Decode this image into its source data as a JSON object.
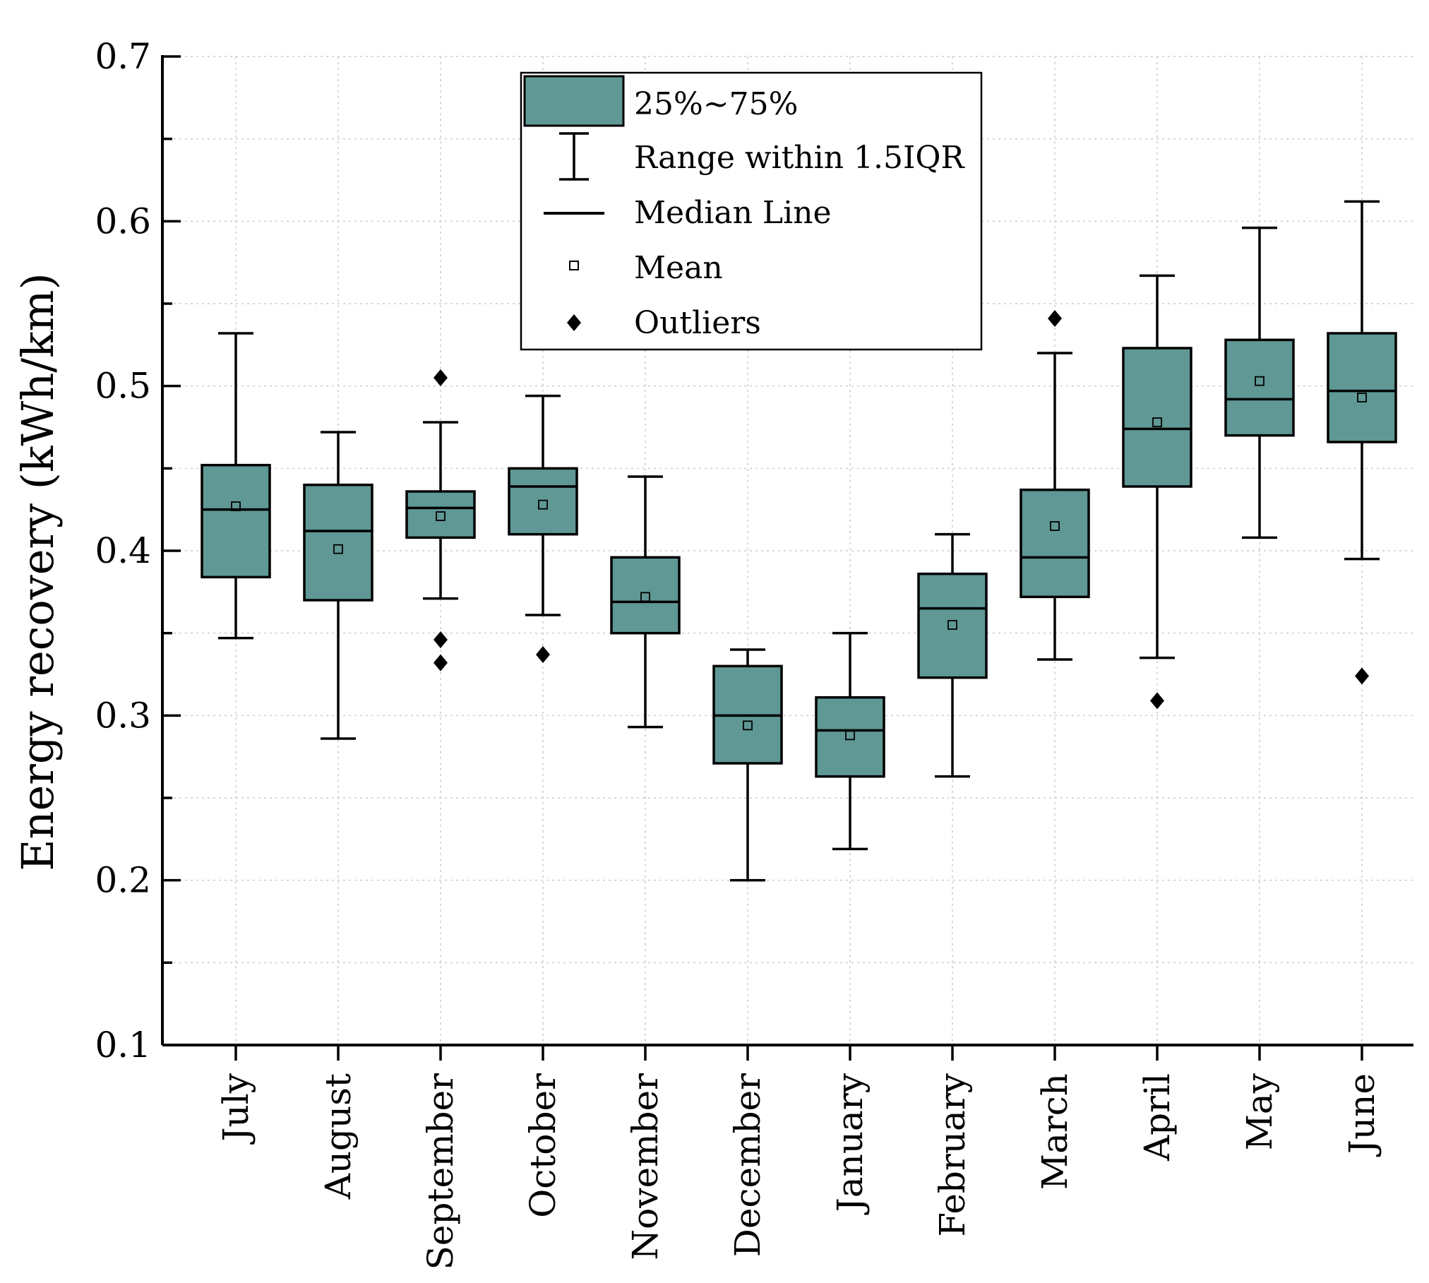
{
  "chart_data": {
    "type": "box",
    "ylabel": "Energy recovery (kWh/km)",
    "ylim": [
      0.1,
      0.7
    ],
    "yticks": [
      0.1,
      0.2,
      0.3,
      0.4,
      0.5,
      0.6,
      0.7
    ],
    "ytick_labels": [
      "0.1",
      "0.2",
      "0.3",
      "0.4",
      "0.5",
      "0.6",
      "0.7"
    ],
    "grid": true,
    "box_color": "#5f9895",
    "legend_position": "top-center",
    "legend": {
      "box": "25%~75%",
      "whisker": "Range within 1.5IQR",
      "median": "Median Line",
      "mean": "Mean",
      "outliers": "Outliers"
    },
    "categories": [
      "July",
      "August",
      "September",
      "October",
      "November",
      "December",
      "January",
      "February",
      "March",
      "April",
      "May",
      "June"
    ],
    "boxes": [
      {
        "low": 0.347,
        "q1": 0.384,
        "median": 0.425,
        "q3": 0.452,
        "high": 0.532,
        "mean": 0.427,
        "outliers": []
      },
      {
        "low": 0.286,
        "q1": 0.37,
        "median": 0.412,
        "q3": 0.44,
        "high": 0.472,
        "mean": 0.401,
        "outliers": []
      },
      {
        "low": 0.371,
        "q1": 0.408,
        "median": 0.426,
        "q3": 0.436,
        "high": 0.478,
        "mean": 0.421,
        "outliers": [
          0.505,
          0.346,
          0.332
        ]
      },
      {
        "low": 0.361,
        "q1": 0.41,
        "median": 0.439,
        "q3": 0.45,
        "high": 0.494,
        "mean": 0.428,
        "outliers": [
          0.337
        ]
      },
      {
        "low": 0.293,
        "q1": 0.35,
        "median": 0.369,
        "q3": 0.396,
        "high": 0.445,
        "mean": 0.372,
        "outliers": []
      },
      {
        "low": 0.2,
        "q1": 0.271,
        "median": 0.3,
        "q3": 0.33,
        "high": 0.34,
        "mean": 0.294,
        "outliers": []
      },
      {
        "low": 0.219,
        "q1": 0.263,
        "median": 0.291,
        "q3": 0.311,
        "high": 0.35,
        "mean": 0.288,
        "outliers": []
      },
      {
        "low": 0.263,
        "q1": 0.323,
        "median": 0.365,
        "q3": 0.386,
        "high": 0.41,
        "mean": 0.355,
        "outliers": []
      },
      {
        "low": 0.334,
        "q1": 0.372,
        "median": 0.396,
        "q3": 0.437,
        "high": 0.52,
        "mean": 0.415,
        "outliers": [
          0.541
        ]
      },
      {
        "low": 0.335,
        "q1": 0.439,
        "median": 0.474,
        "q3": 0.523,
        "high": 0.567,
        "mean": 0.478,
        "outliers": [
          0.309
        ]
      },
      {
        "low": 0.408,
        "q1": 0.47,
        "median": 0.492,
        "q3": 0.528,
        "high": 0.596,
        "mean": 0.503,
        "outliers": []
      },
      {
        "low": 0.395,
        "q1": 0.466,
        "median": 0.497,
        "q3": 0.532,
        "high": 0.612,
        "mean": 0.493,
        "outliers": [
          0.324
        ]
      }
    ]
  }
}
